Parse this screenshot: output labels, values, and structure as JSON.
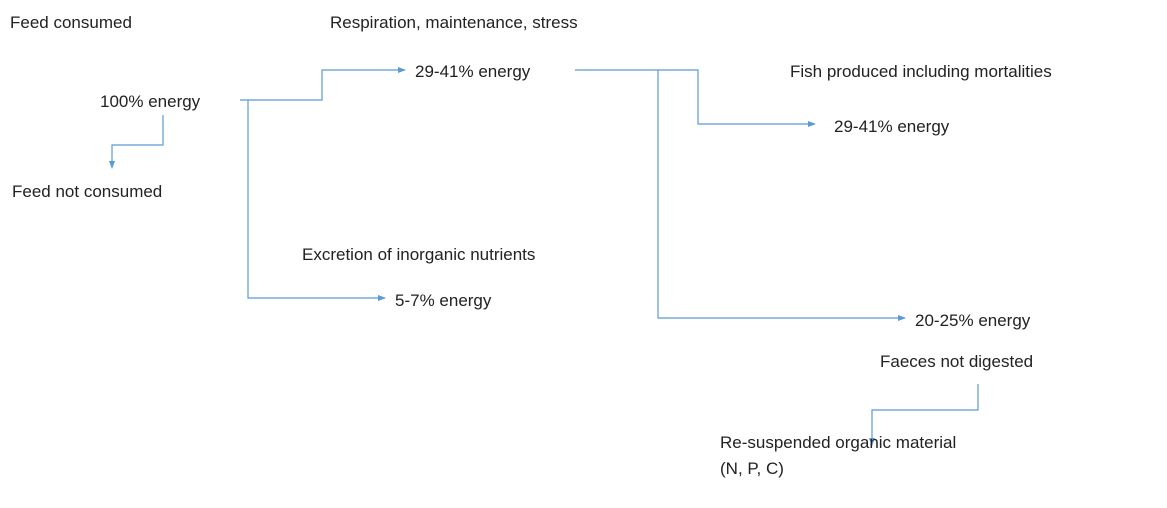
{
  "nodes": [
    {
      "label": "Feed consumed"
    },
    {
      "label": "Respiration, maintenance, stress"
    },
    {
      "label": "100% energy"
    },
    {
      "label": "29-41% energy"
    },
    {
      "label": "Fish produced including mortalities"
    },
    {
      "label": "29-41% energy"
    },
    {
      "label": "Feed not consumed"
    },
    {
      "label": "Excretion of inorganic nutrients"
    },
    {
      "label": "5-7% energy"
    },
    {
      "label": "20-25% energy"
    },
    {
      "label": "Faeces not digested"
    },
    {
      "label": "Re-suspended organic material"
    },
    {
      "label": "(N, P, C)"
    }
  ]
}
